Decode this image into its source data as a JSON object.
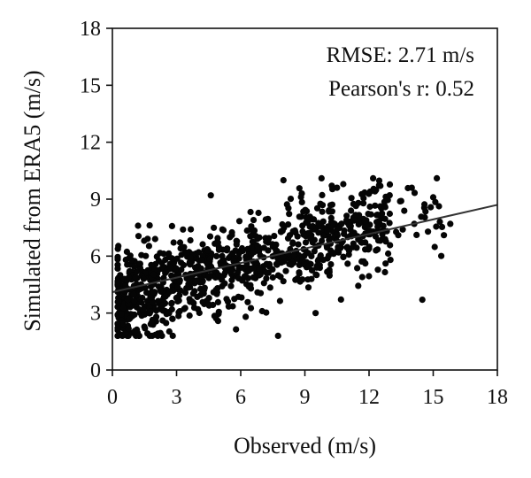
{
  "chart_data": {
    "type": "scatter",
    "title": "",
    "xlabel": "Observed (m/s)",
    "ylabel": "Simulated from ERA5 (m/s)",
    "xlim": [
      0,
      18
    ],
    "ylim": [
      0,
      18
    ],
    "xticks": [
      0,
      3,
      6,
      9,
      12,
      15,
      18
    ],
    "yticks": [
      0,
      3,
      6,
      9,
      12,
      15,
      18
    ],
    "xtick_labels": [
      "0",
      "3",
      "6",
      "9",
      "12",
      "15",
      "18"
    ],
    "ytick_labels": [
      "0",
      "3",
      "6",
      "9",
      "12",
      "15",
      "18"
    ],
    "grid": false,
    "legend": "none",
    "marker_color": "#050505",
    "annotations": [
      "RMSE: 2.71 m/s",
      "Pearson's r: 0.52"
    ],
    "fit_line": {
      "x": [
        0,
        18
      ],
      "y": [
        4.1,
        8.7
      ]
    },
    "series": [
      {
        "point_count": 1000,
        "x": [
          0.3,
          0.5,
          0.6,
          0.8,
          1.0,
          1.2,
          1.4,
          1.6,
          1.8,
          2.0,
          2.2,
          2.5,
          2.8,
          3.0,
          3.3,
          3.6,
          4.0,
          4.3,
          4.6,
          5.0,
          5.4,
          5.8,
          6.2,
          6.6,
          7.0,
          7.5,
          8.0,
          8.5,
          9.0,
          9.5,
          10.0,
          10.5,
          11.0,
          11.5,
          12.0,
          12.5,
          13.0,
          13.5,
          14.0,
          15.0,
          15.5,
          15.8
        ],
        "y": [
          4.6,
          2.2,
          1.9,
          5.2,
          4.1,
          7.6,
          3.8,
          5.0,
          4.4,
          6.9,
          3.5,
          5.3,
          2.7,
          4.8,
          7.4,
          5.6,
          3.2,
          6.3,
          9.2,
          4.9,
          3.6,
          6.8,
          5.4,
          7.9,
          3.1,
          6.5,
          10.0,
          5.8,
          8.4,
          3.0,
          7.2,
          9.6,
          5.6,
          8.8,
          6.4,
          7.7,
          5.8,
          8.9,
          9.6,
          9.1,
          7.1,
          7.7
        ]
      }
    ]
  }
}
